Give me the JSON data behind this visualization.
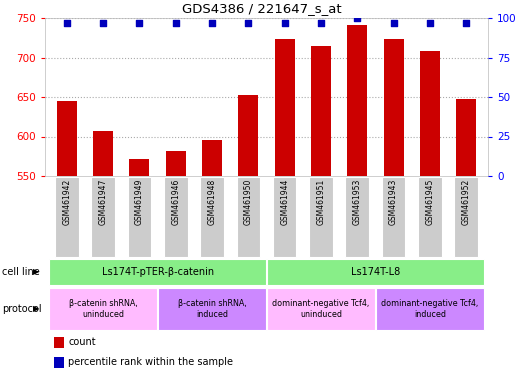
{
  "title": "GDS4386 / 221647_s_at",
  "samples": [
    "GSM461942",
    "GSM461947",
    "GSM461949",
    "GSM461946",
    "GSM461948",
    "GSM461950",
    "GSM461944",
    "GSM461951",
    "GSM461953",
    "GSM461943",
    "GSM461945",
    "GSM461952"
  ],
  "counts": [
    645,
    607,
    572,
    582,
    596,
    652,
    723,
    715,
    741,
    723,
    708,
    648
  ],
  "percentile_ranks": [
    97,
    97,
    97,
    97,
    97,
    97,
    97,
    97,
    100,
    97,
    97,
    97
  ],
  "ylim_left": [
    550,
    750
  ],
  "ylim_right": [
    0,
    100
  ],
  "yticks_left": [
    550,
    600,
    650,
    700,
    750
  ],
  "yticks_right": [
    0,
    25,
    50,
    75,
    100
  ],
  "bar_color": "#cc0000",
  "dot_color": "#0000bb",
  "cell_line_groups": [
    {
      "label": "Ls174T-pTER-β-catenin",
      "start": 0,
      "end": 6,
      "color": "#88ee88"
    },
    {
      "label": "Ls174T-L8",
      "start": 6,
      "end": 12,
      "color": "#88ee88"
    }
  ],
  "protocol_groups": [
    {
      "label": "β-catenin shRNA,\nuninduced",
      "start": 0,
      "end": 3,
      "color": "#ffbbff"
    },
    {
      "label": "β-catenin shRNA,\ninduced",
      "start": 3,
      "end": 6,
      "color": "#cc88ff"
    },
    {
      "label": "dominant-negative Tcf4,\nuninduced",
      "start": 6,
      "end": 9,
      "color": "#ffbbff"
    },
    {
      "label": "dominant-negative Tcf4,\ninduced",
      "start": 9,
      "end": 12,
      "color": "#cc88ff"
    }
  ],
  "cell_line_row_label": "cell line",
  "protocol_row_label": "protocol",
  "legend_count_label": "count",
  "legend_pct_label": "percentile rank within the sample",
  "bar_width": 0.55,
  "grid_color": "#888888",
  "tick_area_bg": "#cccccc",
  "xlim": [
    -0.6,
    11.6
  ]
}
